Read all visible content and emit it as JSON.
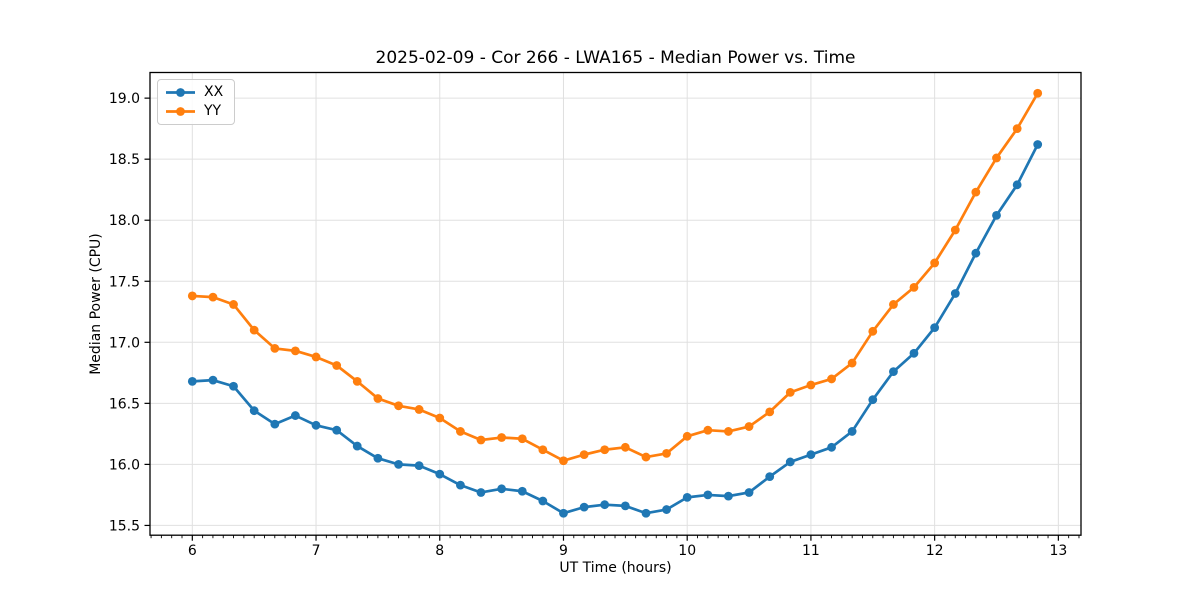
{
  "chart_data": {
    "type": "line",
    "title": "2025-02-09 - Cor 266 - LWA165 - Median Power vs. Time",
    "xlabel": "UT Time (hours)",
    "ylabel": "Median Power (CPU)",
    "xlim": [
      5.658,
      13.183
    ],
    "ylim": [
      15.42,
      19.21
    ],
    "xticks": [
      6,
      7,
      8,
      9,
      10,
      11,
      12,
      13
    ],
    "yticks": [
      "15.5",
      "16.0",
      "16.5",
      "17.0",
      "17.5",
      "18.0",
      "18.5",
      "19.0"
    ],
    "minor_x_step": 0.0833333,
    "grid": true,
    "grid_color": "#e0e0e0",
    "axis_color": "#000000",
    "legend_position": "upper left",
    "x": [
      6.0,
      6.167,
      6.333,
      6.5,
      6.667,
      6.833,
      7.0,
      7.167,
      7.333,
      7.5,
      7.667,
      7.833,
      8.0,
      8.167,
      8.333,
      8.5,
      8.667,
      8.833,
      9.0,
      9.167,
      9.333,
      9.5,
      9.667,
      9.833,
      10.0,
      10.167,
      10.333,
      10.5,
      10.667,
      10.833,
      11.0,
      11.167,
      11.333,
      11.5,
      11.667,
      11.833,
      12.0,
      12.167,
      12.333,
      12.5,
      12.667,
      12.833
    ],
    "series": [
      {
        "name": "XX",
        "color": "#1f77b4",
        "values": [
          16.68,
          16.69,
          16.64,
          16.44,
          16.33,
          16.4,
          16.32,
          16.28,
          16.15,
          16.05,
          16.0,
          15.99,
          15.92,
          15.83,
          15.77,
          15.8,
          15.78,
          15.7,
          15.6,
          15.65,
          15.67,
          15.66,
          15.6,
          15.63,
          15.73,
          15.75,
          15.74,
          15.77,
          15.9,
          16.02,
          16.08,
          16.14,
          16.27,
          16.53,
          16.76,
          16.91,
          17.12,
          17.4,
          17.73,
          18.04,
          18.29,
          18.62
        ]
      },
      {
        "name": "YY",
        "color": "#ff7f0e",
        "values": [
          17.38,
          17.37,
          17.31,
          17.1,
          16.95,
          16.93,
          16.88,
          16.81,
          16.68,
          16.54,
          16.48,
          16.45,
          16.38,
          16.27,
          16.2,
          16.22,
          16.21,
          16.12,
          16.03,
          16.08,
          16.12,
          16.14,
          16.06,
          16.09,
          16.23,
          16.28,
          16.27,
          16.31,
          16.43,
          16.59,
          16.65,
          16.7,
          16.83,
          17.09,
          17.31,
          17.45,
          17.65,
          17.92,
          18.23,
          18.51,
          18.75,
          19.04
        ]
      }
    ]
  }
}
